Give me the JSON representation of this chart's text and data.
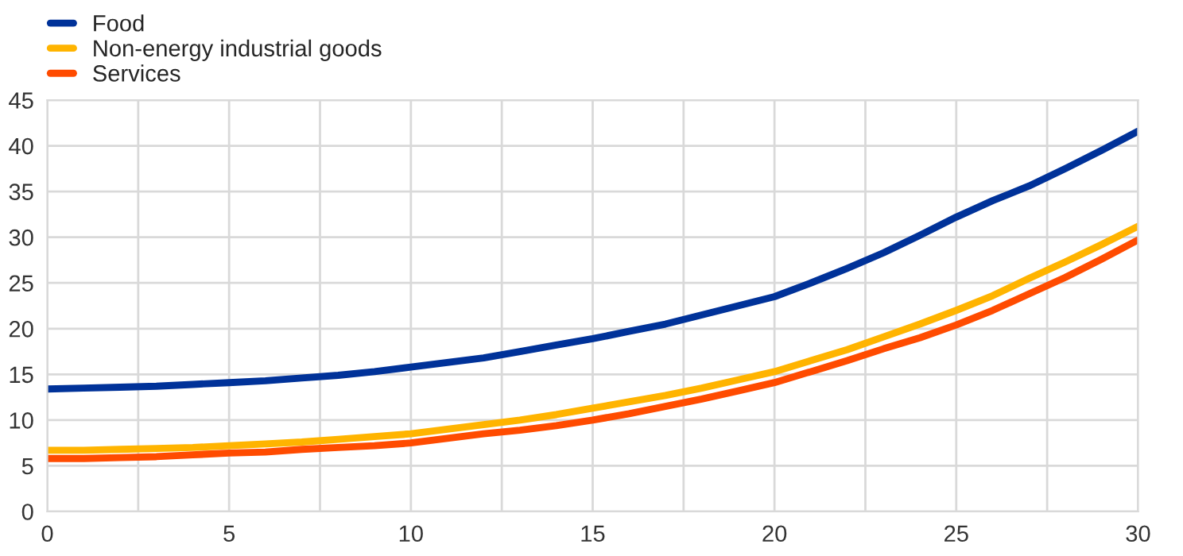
{
  "chart_data": {
    "type": "line",
    "x": [
      0,
      1,
      2,
      3,
      4,
      5,
      6,
      7,
      8,
      9,
      10,
      11,
      12,
      13,
      14,
      15,
      16,
      17,
      18,
      19,
      20,
      21,
      22,
      23,
      24,
      25,
      26,
      27,
      28,
      29,
      30
    ],
    "series": [
      {
        "name": "Food",
        "color": "#003299",
        "values": [
          13.4,
          13.5,
          13.6,
          13.7,
          13.9,
          14.1,
          14.3,
          14.6,
          14.9,
          15.3,
          15.8,
          16.3,
          16.8,
          17.5,
          18.2,
          18.9,
          19.7,
          20.5,
          21.5,
          22.5,
          23.5,
          25.0,
          26.6,
          28.3,
          30.2,
          32.2,
          34.0,
          35.6,
          37.5,
          39.5,
          41.6
        ]
      },
      {
        "name": "Non-energy industrial goods",
        "color": "#ffb400",
        "values": [
          6.7,
          6.7,
          6.8,
          6.9,
          7.0,
          7.2,
          7.4,
          7.6,
          7.9,
          8.2,
          8.5,
          9.0,
          9.5,
          10.0,
          10.6,
          11.3,
          12.0,
          12.7,
          13.5,
          14.4,
          15.3,
          16.5,
          17.7,
          19.1,
          20.5,
          22.0,
          23.6,
          25.5,
          27.3,
          29.2,
          31.2
        ]
      },
      {
        "name": "Services",
        "color": "#ff4b00",
        "values": [
          5.8,
          5.8,
          5.9,
          6.0,
          6.2,
          6.4,
          6.5,
          6.8,
          7.0,
          7.2,
          7.5,
          8.0,
          8.5,
          8.9,
          9.4,
          10.0,
          10.7,
          11.5,
          12.3,
          13.2,
          14.1,
          15.3,
          16.5,
          17.8,
          19.0,
          20.4,
          22.0,
          23.8,
          25.6,
          27.6,
          29.7
        ]
      }
    ],
    "xlim": [
      0,
      30
    ],
    "xticks": [
      0,
      {
        "value": 2.5,
        "label": null
      },
      5,
      {
        "value": 7.5,
        "label": null
      },
      10,
      {
        "value": 12.5,
        "label": null
      },
      15,
      {
        "value": 17.5,
        "label": null
      },
      20,
      {
        "value": 22.5,
        "label": null
      },
      25,
      {
        "value": 27.5,
        "label": null
      },
      30
    ],
    "ylim": [
      0,
      45
    ],
    "yticks": [
      0,
      5,
      10,
      15,
      20,
      25,
      30,
      35,
      40,
      45
    ],
    "grid": true,
    "legend": "top left",
    "marker": "none",
    "line_style": "solid"
  }
}
